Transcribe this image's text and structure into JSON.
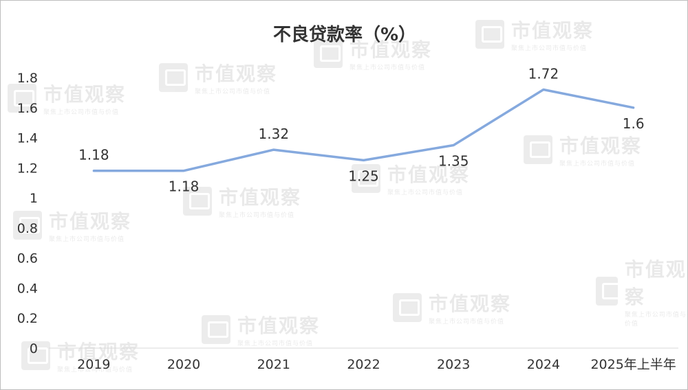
{
  "watermark": {
    "brand": "市值观察",
    "tagline": "聚焦上市公司市值与价值"
  },
  "chart_data": {
    "type": "line",
    "title": "不良贷款率（%）",
    "categories": [
      "2019",
      "2020",
      "2021",
      "2022",
      "2023",
      "2024",
      "2025年上半年"
    ],
    "series": [
      {
        "values": [
          1.18,
          1.18,
          1.32,
          1.25,
          1.35,
          1.72,
          1.6
        ],
        "color": "#85a9de"
      }
    ],
    "data_labels": [
      "1.18",
      "1.18",
      "1.32",
      "1.25",
      "1.35",
      "1.72",
      "1.6"
    ],
    "y_ticks": [
      "0",
      "0.2",
      "0.4",
      "0.6",
      "0.8",
      "1",
      "1.2",
      "1.4",
      "1.6",
      "1.8"
    ],
    "ylim": [
      0,
      1.8
    ],
    "grid": false,
    "legend": "none"
  }
}
